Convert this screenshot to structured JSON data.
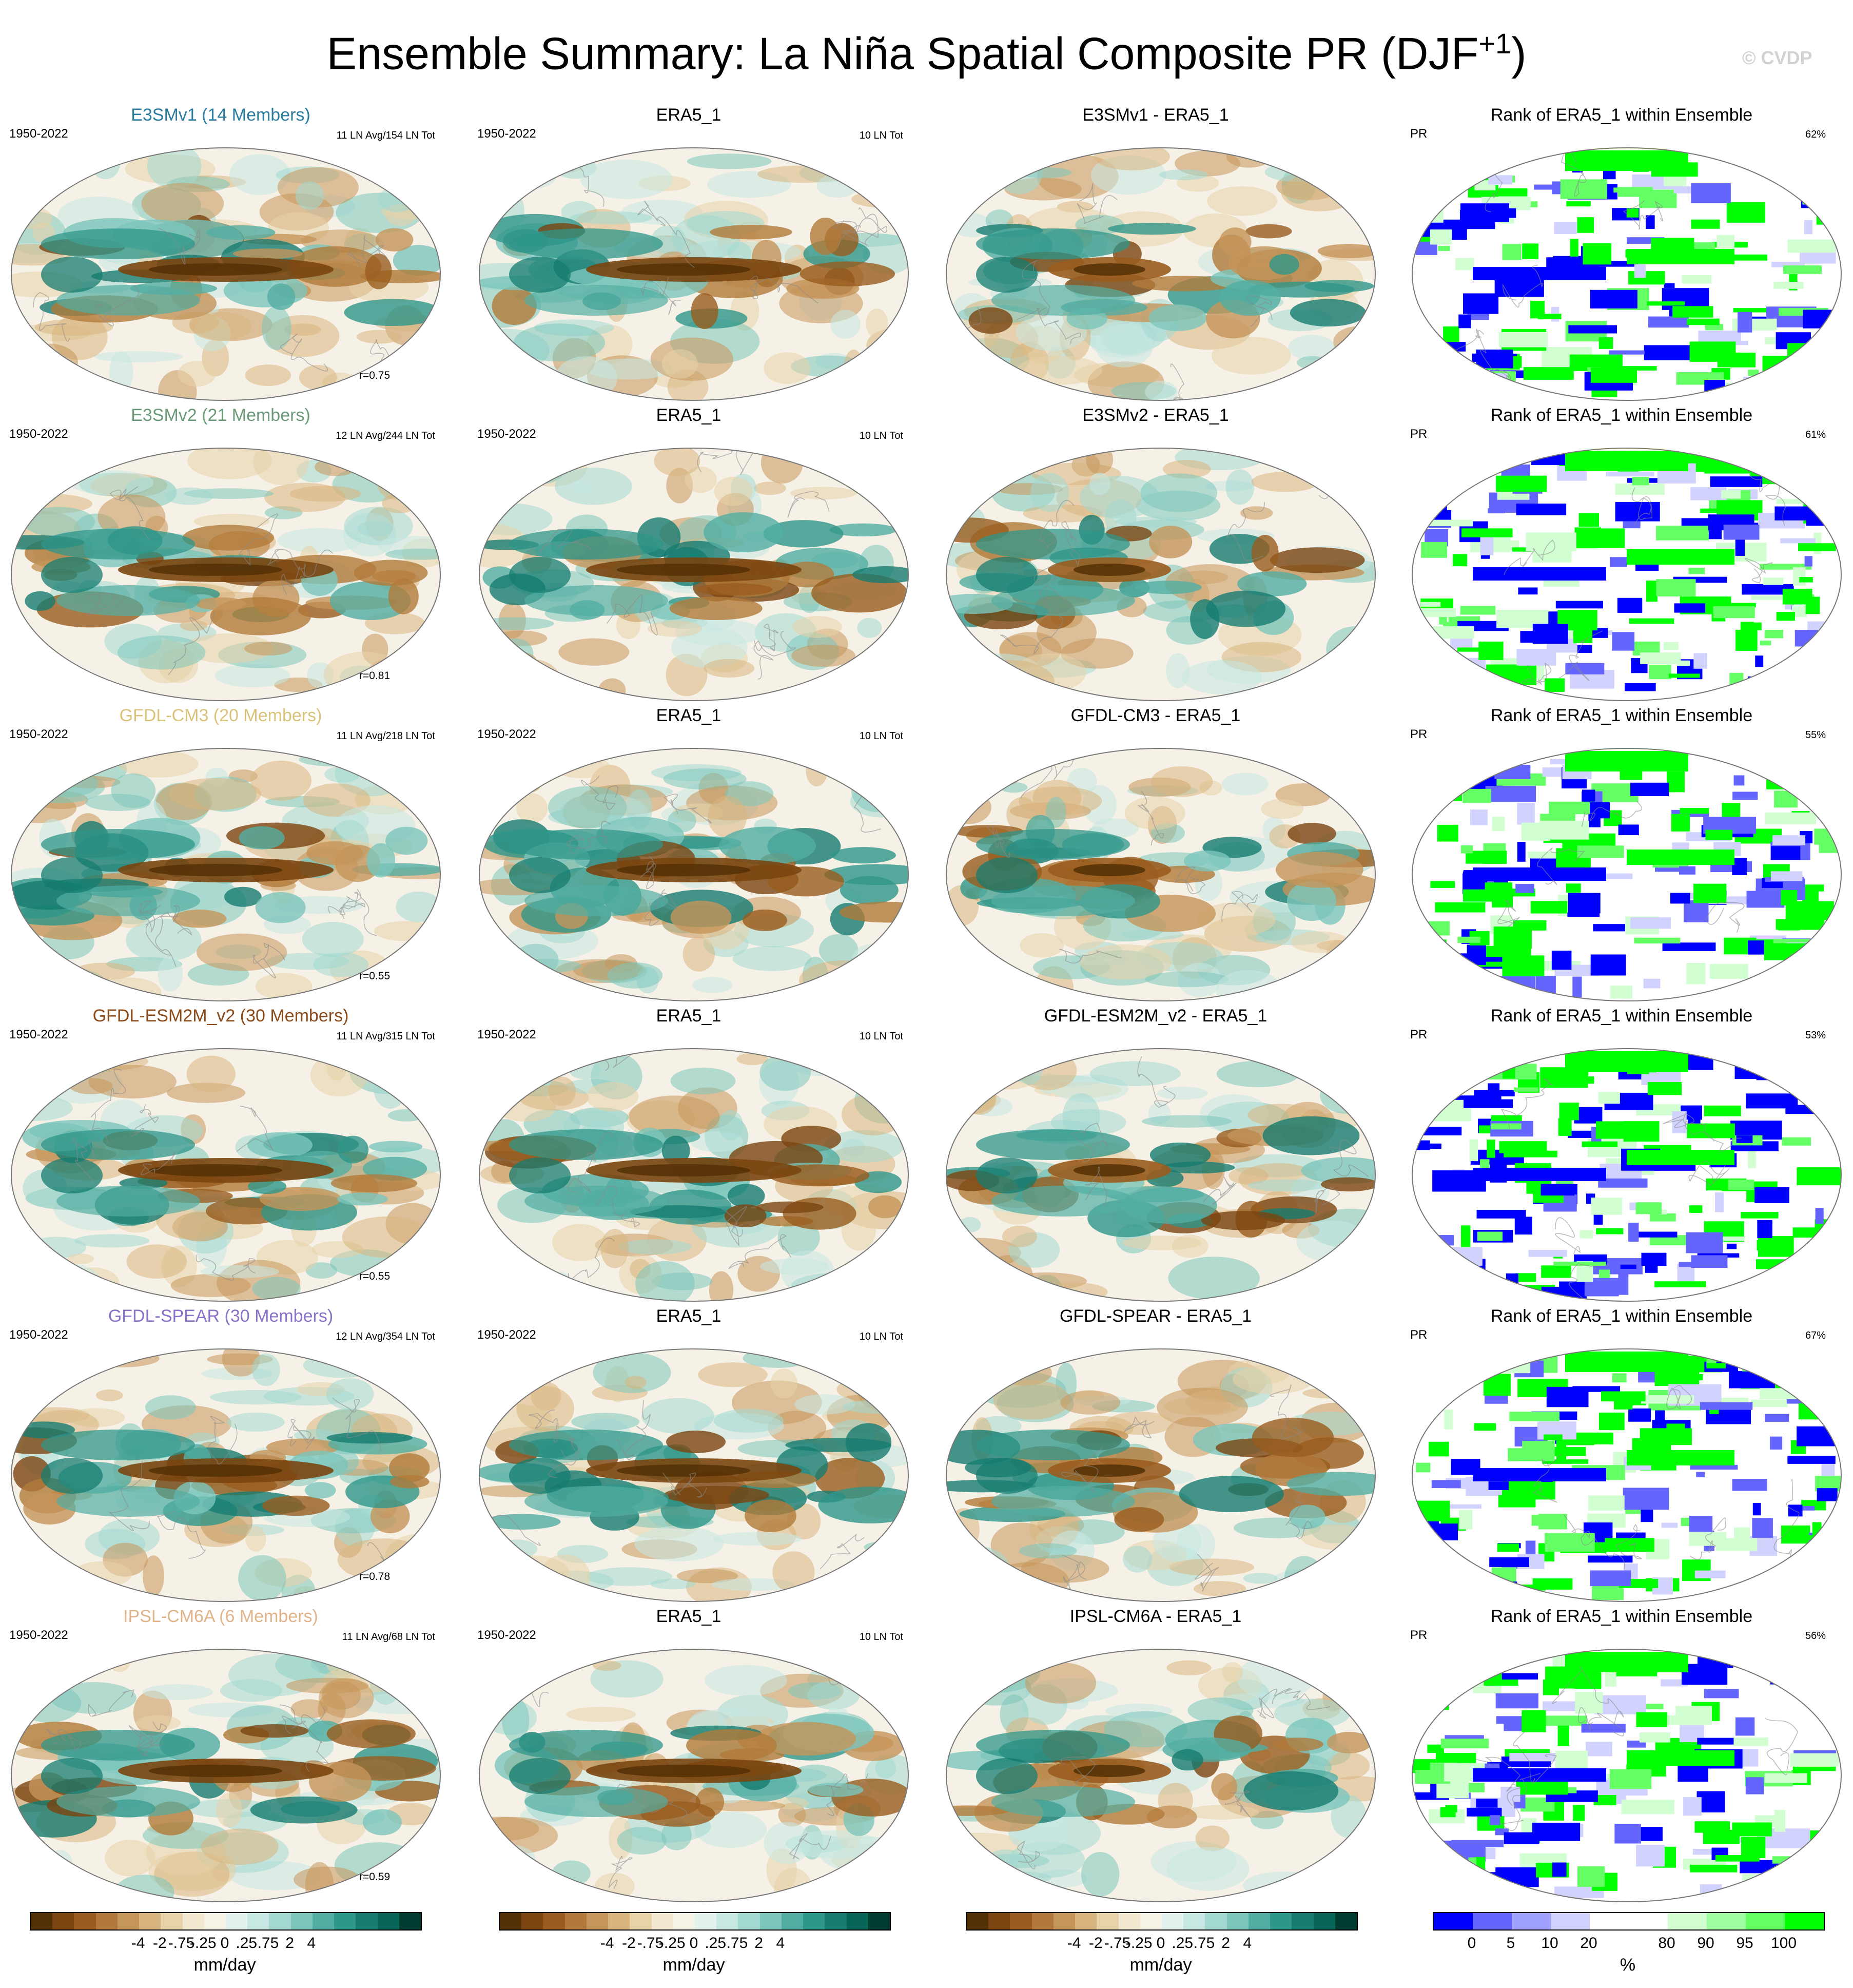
{
  "page": {
    "title": "Ensemble Summary: La Niña Spatial Composite PR (DJF",
    "title_sup": "+1",
    "title_close": ")",
    "watermark": "© CVDP"
  },
  "rows": [
    {
      "model": "E3SMv1 (14 Members)",
      "model_color": "#2c7ca0",
      "period": "1950-2022",
      "counts": "11 LN Avg/154 LN Tot",
      "corr": "r=0.75",
      "obs_title": "ERA5_1",
      "obs_period": "1950-2022",
      "obs_counts": "10 LN Tot",
      "diff_title": "E3SMv1 - ERA5_1",
      "rank_title": "Rank of ERA5_1 within Ensemble",
      "rank_var": "PR",
      "rank_pct": "62%"
    },
    {
      "model": "E3SMv2 (21 Members)",
      "model_color": "#6a9a78",
      "period": "1950-2022",
      "counts": "12 LN Avg/244 LN Tot",
      "corr": "r=0.81",
      "obs_title": "ERA5_1",
      "obs_period": "1950-2022",
      "obs_counts": "10 LN Tot",
      "diff_title": "E3SMv2 - ERA5_1",
      "rank_title": "Rank of ERA5_1 within Ensemble",
      "rank_var": "PR",
      "rank_pct": "61%"
    },
    {
      "model": "GFDL-CM3 (20 Members)",
      "model_color": "#d9c27a",
      "period": "1950-2022",
      "counts": "11 LN Avg/218 LN Tot",
      "corr": "r=0.55",
      "obs_title": "ERA5_1",
      "obs_period": "1950-2022",
      "obs_counts": "10 LN Tot",
      "diff_title": "GFDL-CM3 - ERA5_1",
      "rank_title": "Rank of ERA5_1 within Ensemble",
      "rank_var": "PR",
      "rank_pct": "55%"
    },
    {
      "model": "GFDL-ESM2M_v2 (30 Members)",
      "model_color": "#8a4a1a",
      "period": "1950-2022",
      "counts": "11 LN Avg/315 LN Tot",
      "corr": "r=0.55",
      "obs_title": "ERA5_1",
      "obs_period": "1950-2022",
      "obs_counts": "10 LN Tot",
      "diff_title": "GFDL-ESM2M_v2 - ERA5_1",
      "rank_title": "Rank of ERA5_1 within Ensemble",
      "rank_var": "PR",
      "rank_pct": "53%"
    },
    {
      "model": "GFDL-SPEAR (30 Members)",
      "model_color": "#8a72c8",
      "period": "1950-2022",
      "counts": "12 LN Avg/354 LN Tot",
      "corr": "r=0.78",
      "obs_title": "ERA5_1",
      "obs_period": "1950-2022",
      "obs_counts": "10 LN Tot",
      "diff_title": "GFDL-SPEAR - ERA5_1",
      "rank_title": "Rank of ERA5_1 within Ensemble",
      "rank_var": "PR",
      "rank_pct": "67%"
    },
    {
      "model": "IPSL-CM6A (6 Members)",
      "model_color": "#e0b48a",
      "period": "1950-2022",
      "counts": "11 LN Avg/68 LN Tot",
      "corr": "r=0.59",
      "obs_title": "ERA5_1",
      "obs_period": "1950-2022",
      "obs_counts": "10 LN Tot",
      "diff_title": "IPSL-CM6A - ERA5_1",
      "rank_title": "Rank of ERA5_1 within Ensemble",
      "rank_var": "PR",
      "rank_pct": "56%"
    }
  ],
  "colorbars": {
    "pr": {
      "colors": [
        "#543005",
        "#7a4510",
        "#995c1e",
        "#b27a3a",
        "#c6955a",
        "#d8b57e",
        "#e8d2a8",
        "#f3e8d0",
        "#f5f2e6",
        "#e4f2ef",
        "#c7e8e2",
        "#a3d9d1",
        "#7cc6bc",
        "#52aea2",
        "#2f968a",
        "#167c70",
        "#056455",
        "#003c30"
      ],
      "ticks": [
        "-4",
        "-2",
        "-.75",
        "-.25",
        "0",
        ".25",
        ".75",
        "2",
        "4"
      ],
      "unit": "mm/day"
    },
    "rank": {
      "colors": [
        "#0000ff",
        "#6464ff",
        "#a0a0ff",
        "#d2d2ff",
        "#ffffff",
        "#ffffff",
        "#d2ffd2",
        "#a0ffa0",
        "#64ff64",
        "#00ff00"
      ],
      "ticks": [
        "0",
        "5",
        "10",
        "20",
        "80",
        "90",
        "95",
        "100"
      ],
      "unit": "%"
    }
  }
}
